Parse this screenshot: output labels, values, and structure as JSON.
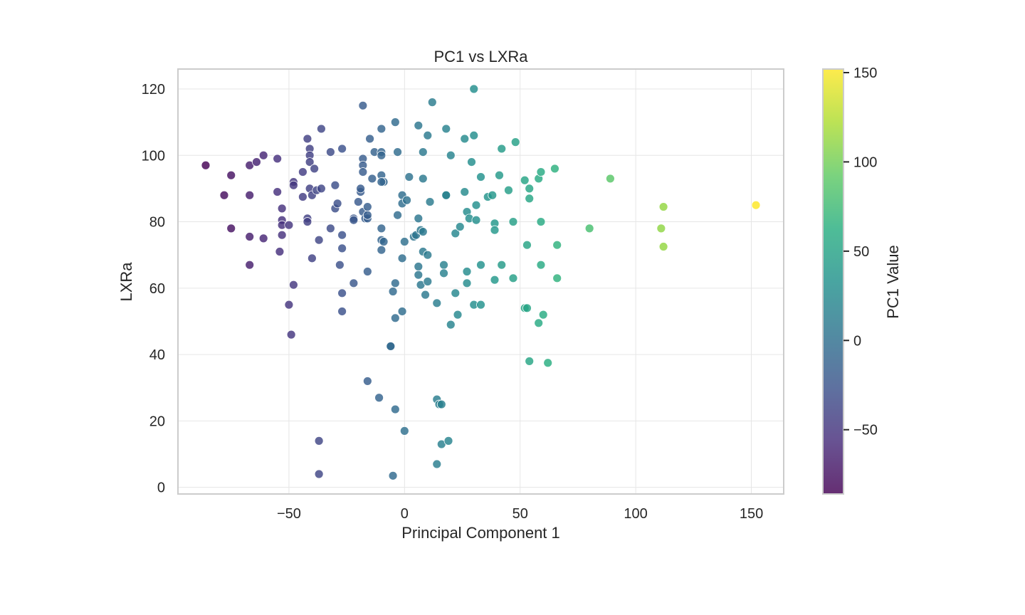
{
  "chart_data": {
    "type": "scatter",
    "title": "PC1 vs LXRa",
    "xlabel": "Principal Component 1",
    "ylabel": "LXRa",
    "xlim": [
      -98,
      164
    ],
    "ylim": [
      -2,
      126
    ],
    "xticks": [
      -50,
      0,
      50,
      100,
      150
    ],
    "xtick_labels": [
      "−50",
      "0",
      "50",
      "100",
      "150"
    ],
    "yticks": [
      0,
      20,
      40,
      60,
      80,
      100,
      120
    ],
    "ytick_labels": [
      "0",
      "20",
      "40",
      "60",
      "80",
      "100",
      "120"
    ],
    "grid": true,
    "colorbar": {
      "label": "PC1 Value",
      "colormap": "viridis",
      "range": [
        -86,
        152
      ],
      "ticks": [
        -50,
        0,
        50,
        100,
        150
      ],
      "tick_labels": [
        "−50",
        "0",
        "50",
        "100",
        "150"
      ]
    },
    "points": [
      [
        -86,
        97
      ],
      [
        -78,
        88
      ],
      [
        -75,
        94
      ],
      [
        -75,
        78
      ],
      [
        -67,
        97
      ],
      [
        -67,
        88
      ],
      [
        -67,
        75.5
      ],
      [
        -67,
        67
      ],
      [
        -64,
        98
      ],
      [
        -61,
        100
      ],
      [
        -61,
        75
      ],
      [
        -55,
        99
      ],
      [
        -55,
        89
      ],
      [
        -54,
        71
      ],
      [
        -53,
        84
      ],
      [
        -53,
        80.5
      ],
      [
        -53,
        76
      ],
      [
        -53,
        79
      ],
      [
        -50,
        79
      ],
      [
        -50,
        55
      ],
      [
        -49,
        46
      ],
      [
        -48,
        61
      ],
      [
        -48,
        92
      ],
      [
        -48,
        91
      ],
      [
        -44,
        95
      ],
      [
        -44,
        87.5
      ],
      [
        -42,
        105
      ],
      [
        -42,
        81
      ],
      [
        -42,
        80
      ],
      [
        -41,
        102
      ],
      [
        -41,
        100
      ],
      [
        -41,
        98
      ],
      [
        -41,
        90
      ],
      [
        -40,
        88
      ],
      [
        -40,
        69
      ],
      [
        -39,
        96
      ],
      [
        -38,
        89.5
      ],
      [
        -37,
        74.5
      ],
      [
        -37,
        14
      ],
      [
        -37,
        4
      ],
      [
        -36,
        108
      ],
      [
        -36,
        90
      ],
      [
        -32,
        78
      ],
      [
        -32,
        101
      ],
      [
        -30,
        91
      ],
      [
        -30,
        84
      ],
      [
        -29,
        85.5
      ],
      [
        -27,
        102
      ],
      [
        -27,
        76
      ],
      [
        -27,
        72
      ],
      [
        -28,
        67
      ],
      [
        -27,
        58.5
      ],
      [
        -27,
        53
      ],
      [
        -22,
        61.5
      ],
      [
        -22,
        81
      ],
      [
        -22,
        80.5
      ],
      [
        -20,
        86
      ],
      [
        -19,
        89
      ],
      [
        -19,
        90
      ],
      [
        -18,
        99
      ],
      [
        -18,
        97
      ],
      [
        -18,
        95
      ],
      [
        -18,
        115
      ],
      [
        -18,
        83
      ],
      [
        -17,
        81
      ],
      [
        -16,
        84.5
      ],
      [
        -16,
        81
      ],
      [
        -16,
        82
      ],
      [
        -16,
        65
      ],
      [
        -16,
        32
      ],
      [
        -15,
        105
      ],
      [
        -14,
        93
      ],
      [
        -13,
        101
      ],
      [
        -10,
        108
      ],
      [
        -10,
        101
      ],
      [
        -10,
        100
      ],
      [
        -10,
        94
      ],
      [
        -9,
        92
      ],
      [
        -10,
        92
      ],
      [
        -10,
        78
      ],
      [
        -10,
        74.5
      ],
      [
        -9,
        74
      ],
      [
        -10,
        71.5
      ],
      [
        -11,
        27
      ],
      [
        -6,
        42.5
      ],
      [
        -6,
        42.5
      ],
      [
        -5,
        59
      ],
      [
        -4,
        61.5
      ],
      [
        -4,
        51
      ],
      [
        -4,
        23.5
      ],
      [
        -4,
        110
      ],
      [
        -3,
        101
      ],
      [
        -3,
        82
      ],
      [
        -5,
        3.5
      ],
      [
        -1,
        88
      ],
      [
        -1,
        85.5
      ],
      [
        -1,
        69
      ],
      [
        -1,
        53
      ],
      [
        0,
        74
      ],
      [
        0,
        17
      ],
      [
        1,
        86.5
      ],
      [
        2,
        93.5
      ],
      [
        4,
        75.5
      ],
      [
        5,
        76
      ],
      [
        6,
        109
      ],
      [
        6,
        81
      ],
      [
        6,
        66.5
      ],
      [
        6,
        64
      ],
      [
        7,
        77.5
      ],
      [
        8,
        77
      ],
      [
        7,
        61
      ],
      [
        8,
        93
      ],
      [
        8,
        101
      ],
      [
        8,
        71
      ],
      [
        10,
        106
      ],
      [
        10,
        70
      ],
      [
        10,
        62
      ],
      [
        9,
        58
      ],
      [
        11,
        86
      ],
      [
        12,
        116
      ],
      [
        14,
        55.5
      ],
      [
        14,
        26.5
      ],
      [
        15,
        25
      ],
      [
        16,
        25
      ],
      [
        14,
        7
      ],
      [
        16,
        13
      ],
      [
        17,
        67
      ],
      [
        17,
        64.5
      ],
      [
        18,
        108
      ],
      [
        18,
        88
      ],
      [
        18,
        88
      ],
      [
        20,
        100
      ],
      [
        19,
        14
      ],
      [
        20,
        49
      ],
      [
        22,
        76.5
      ],
      [
        22,
        58.5
      ],
      [
        23,
        52
      ],
      [
        24,
        78.5
      ],
      [
        26,
        105
      ],
      [
        26,
        89
      ],
      [
        27,
        83
      ],
      [
        27,
        65
      ],
      [
        27,
        61.5
      ],
      [
        28,
        81
      ],
      [
        29,
        98
      ],
      [
        30,
        120
      ],
      [
        30,
        106
      ],
      [
        30,
        55
      ],
      [
        31,
        85
      ],
      [
        31,
        80.5
      ],
      [
        33,
        93.5
      ],
      [
        33,
        67
      ],
      [
        33,
        55
      ],
      [
        36,
        87.5
      ],
      [
        38,
        88
      ],
      [
        39,
        79.5
      ],
      [
        39,
        77.5
      ],
      [
        39,
        62.5
      ],
      [
        41,
        94
      ],
      [
        42,
        67
      ],
      [
        42,
        102
      ],
      [
        45,
        89.5
      ],
      [
        47,
        80
      ],
      [
        47,
        63
      ],
      [
        48,
        104
      ],
      [
        52,
        92.5
      ],
      [
        52,
        54
      ],
      [
        53,
        54
      ],
      [
        53,
        73
      ],
      [
        54,
        90
      ],
      [
        54,
        87
      ],
      [
        54,
        38
      ],
      [
        58,
        93
      ],
      [
        58,
        49.5
      ],
      [
        59,
        95
      ],
      [
        59,
        80
      ],
      [
        59,
        67
      ],
      [
        60,
        52
      ],
      [
        62,
        37.5
      ],
      [
        65,
        96
      ],
      [
        66,
        73
      ],
      [
        66,
        63
      ],
      [
        80,
        78
      ],
      [
        89,
        93
      ],
      [
        112,
        84.5
      ],
      [
        111,
        78
      ],
      [
        112,
        72.5
      ],
      [
        152,
        85
      ]
    ]
  }
}
